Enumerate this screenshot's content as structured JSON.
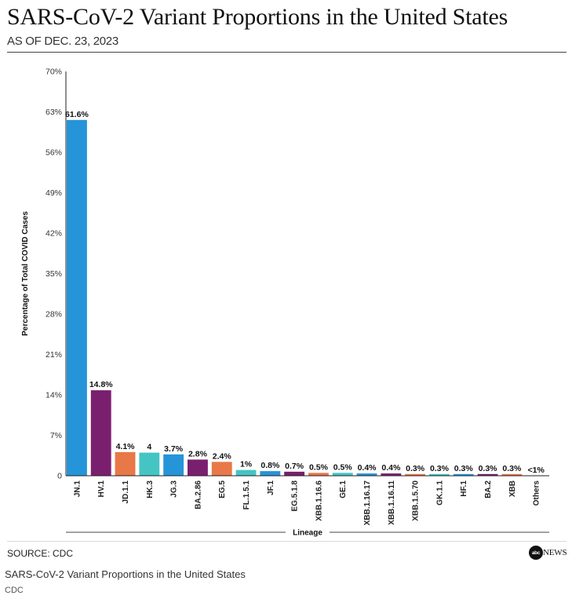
{
  "header": {
    "title": "SARS-CoV-2 Variant Proportions in the United States",
    "subtitle": "AS OF DEC. 23, 2023"
  },
  "footer": {
    "source": "SOURCE: CDC",
    "brand_mark": "abc",
    "brand_word": "NEWS",
    "caption": "SARS-CoV-2 Variant Proportions in the United States",
    "credit": "CDC"
  },
  "chart_data": {
    "type": "bar",
    "title": "SARS-CoV-2 Variant Proportions in the United States",
    "subtitle": "AS OF DEC. 23, 2023",
    "xlabel": "Lineage",
    "ylabel": "Percentage of Total COVID Cases",
    "ylim": [
      0,
      70
    ],
    "yticks": [
      0,
      7,
      14,
      21,
      28,
      35,
      42,
      49,
      56,
      63,
      70
    ],
    "ytick_labels": [
      "0",
      "7%",
      "14%",
      "21%",
      "28%",
      "35%",
      "42%",
      "49%",
      "56%",
      "63%",
      "70%"
    ],
    "grid": false,
    "categories": [
      "JN.1",
      "HV.1",
      "JD.1.1",
      "HK.3",
      "JG.3",
      "BA.2.86",
      "EG.5",
      "FL.1.5.1",
      "JF.1",
      "EG.5.1.8",
      "XBB.1.16.6",
      "GE.1",
      "XBB.1.16.17",
      "XBB.1.16.11",
      "XBB.1.5.70",
      "GK.1.1",
      "HF.1",
      "BA.2",
      "XBB",
      "Others"
    ],
    "values": [
      61.6,
      14.8,
      4.1,
      4,
      3.7,
      2.8,
      2.4,
      1,
      0.8,
      0.7,
      0.5,
      0.5,
      0.4,
      0.4,
      0.3,
      0.3,
      0.3,
      0.3,
      0.3,
      0
    ],
    "data_labels": [
      "61.6%",
      "14.8%",
      "4.1%",
      "4",
      "3.7%",
      "2.8%",
      "2.4%",
      "1%",
      "0.8%",
      "0.7%",
      "0.5%",
      "0.5%",
      "0.4%",
      "0.4%",
      "0.3%",
      "0.3%",
      "0.3%",
      "0.3%",
      "0.3%",
      "<1%"
    ],
    "colors": [
      "#2694d9",
      "#7a1f6e",
      "#e87848",
      "#45c4c4",
      "#2694d9",
      "#7a1f6e",
      "#e87848",
      "#45c4c4",
      "#2694d9",
      "#7a1f6e",
      "#e87848",
      "#45c4c4",
      "#2694d9",
      "#7a1f6e",
      "#e87848",
      "#45c4c4",
      "#2694d9",
      "#7a1f6e",
      "#e87848",
      "#45c4c4"
    ]
  }
}
